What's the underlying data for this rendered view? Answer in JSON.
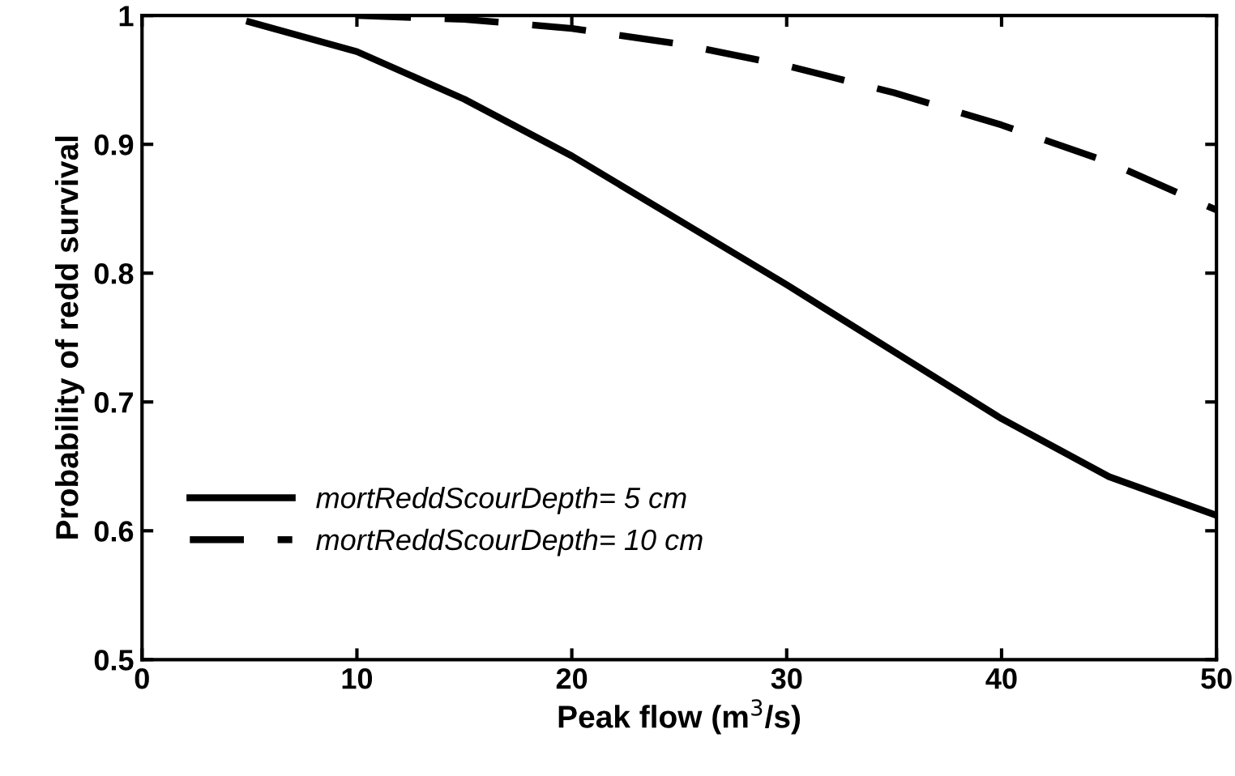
{
  "chart_data": {
    "type": "line",
    "xlabel": "Peak flow (m$^{3}$/s)",
    "ylabel": "Probability of redd survival",
    "xlim": [
      0,
      50
    ],
    "ylim": [
      0.5,
      1
    ],
    "xticks": [
      0,
      10,
      20,
      30,
      40,
      50
    ],
    "yticks": [
      {
        "value": 0.5,
        "label": "0.5"
      },
      {
        "value": 0.6,
        "label": "0.6"
      },
      {
        "value": 0.7,
        "label": "0.7"
      },
      {
        "value": 0.8,
        "label": "0.8"
      },
      {
        "value": 0.9,
        "label": "0.9"
      },
      {
        "value": 1,
        "label": "1"
      }
    ],
    "grid": false,
    "legend": "bottom left",
    "marker": "none",
    "series": [
      {
        "name": "mortReddScourDepth= 5 cm",
        "color": "#000000",
        "line_style": "solid",
        "x": [
          5,
          10,
          15,
          20,
          25,
          30,
          35,
          40,
          45,
          50
        ],
        "values": [
          0.995,
          0.972,
          0.935,
          0.891,
          0.841,
          0.791,
          0.739,
          0.687,
          0.642,
          0.612
        ]
      },
      {
        "name": "mortReddScourDepth= 10 cm",
        "color": "#000000",
        "line_style": "dashed",
        "x": [
          10,
          15,
          20,
          25,
          30,
          35,
          40,
          45,
          50
        ],
        "values": [
          1.0,
          0.997,
          0.99,
          0.978,
          0.961,
          0.94,
          0.915,
          0.886,
          0.849
        ]
      }
    ]
  }
}
